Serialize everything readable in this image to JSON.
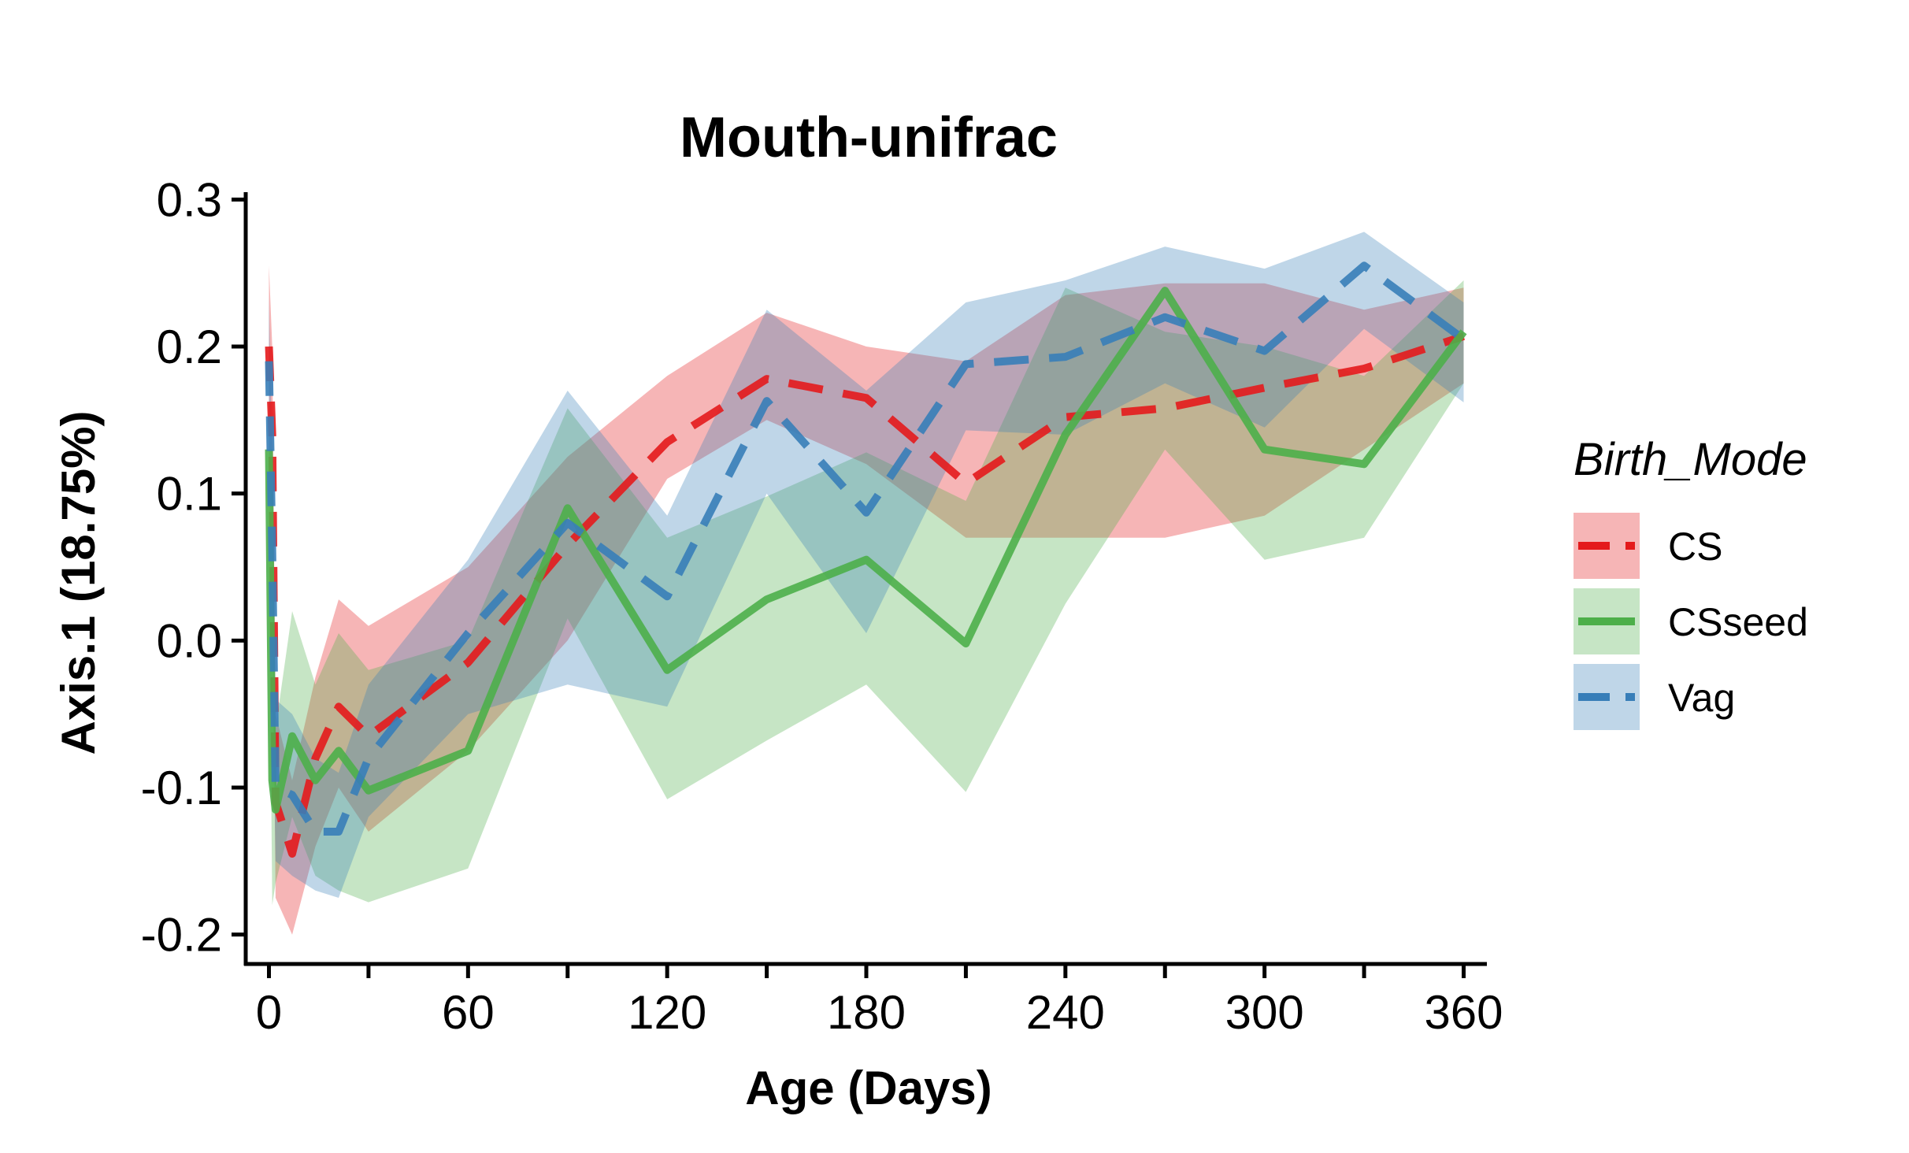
{
  "chart_data": {
    "type": "line",
    "title": "Mouth-unifrac",
    "xlabel": "Age (Days)",
    "ylabel": "Axis.1 (18.75%)",
    "xlim": [
      -7,
      367
    ],
    "ylim": [
      -0.22,
      0.305
    ],
    "x_ticks": [
      0,
      60,
      120,
      180,
      240,
      300,
      360
    ],
    "x_tick_labels": [
      "0",
      "60",
      "120",
      "180",
      "240",
      "300",
      "360"
    ],
    "x_minor_ticks": [
      30,
      90,
      150,
      210,
      270,
      330
    ],
    "y_ticks": [
      -0.2,
      -0.1,
      0.0,
      0.1,
      0.2,
      0.3
    ],
    "y_tick_labels": [
      "-0.2",
      "-0.1",
      "0.0",
      "0.1",
      "0.2",
      "0.3"
    ],
    "grid": false,
    "legend": {
      "title": "Birth_Mode",
      "position": "right",
      "entries": [
        "CS",
        "CSseed",
        "Vag"
      ]
    },
    "series": [
      {
        "name": "CS",
        "color": "#e41a1c",
        "dash": "dashed",
        "x": [
          0,
          1,
          2,
          7,
          14,
          21,
          30,
          60,
          90,
          120,
          150,
          180,
          210,
          240,
          270,
          300,
          330,
          360
        ],
        "y": [
          0.2,
          0.14,
          -0.11,
          -0.145,
          -0.08,
          -0.045,
          -0.065,
          -0.015,
          0.065,
          0.135,
          0.178,
          0.165,
          0.107,
          0.152,
          0.158,
          0.172,
          0.185,
          0.207
        ],
        "lower": [
          0.14,
          0.07,
          -0.175,
          -0.2,
          -0.14,
          -0.1,
          -0.13,
          -0.075,
          0.0,
          0.11,
          0.15,
          0.12,
          0.07,
          0.07,
          0.07,
          0.085,
          0.13,
          0.175
        ],
        "upper": [
          0.255,
          0.2,
          -0.05,
          -0.095,
          -0.025,
          0.028,
          0.01,
          0.05,
          0.125,
          0.18,
          0.223,
          0.2,
          0.19,
          0.235,
          0.243,
          0.243,
          0.225,
          0.24
        ]
      },
      {
        "name": "CSseed",
        "color": "#4daf4a",
        "dash": "solid",
        "x": [
          0,
          1,
          2,
          7,
          14,
          21,
          30,
          60,
          90,
          120,
          150,
          180,
          210,
          240,
          270,
          300,
          330,
          360
        ],
        "y": [
          0.13,
          -0.095,
          -0.115,
          -0.065,
          -0.095,
          -0.075,
          -0.102,
          -0.075,
          0.09,
          -0.02,
          0.028,
          0.055,
          -0.002,
          0.14,
          0.238,
          0.13,
          0.12,
          0.21
        ],
        "lower": [
          0.06,
          -0.18,
          -0.165,
          -0.12,
          -0.16,
          -0.17,
          -0.178,
          -0.155,
          0.015,
          -0.108,
          -0.068,
          -0.03,
          -0.103,
          0.025,
          0.13,
          0.055,
          0.07,
          0.175
        ],
        "upper": [
          0.165,
          -0.03,
          -0.06,
          0.02,
          -0.03,
          0.005,
          -0.02,
          0.0,
          0.158,
          0.07,
          0.098,
          0.128,
          0.095,
          0.24,
          0.21,
          0.2,
          0.18,
          0.245
        ]
      },
      {
        "name": "Vag",
        "color": "#377eb8",
        "dash": "dashed",
        "x": [
          0,
          1,
          2,
          7,
          14,
          21,
          30,
          60,
          90,
          120,
          150,
          180,
          210,
          240,
          270,
          300,
          330,
          360
        ],
        "y": [
          0.19,
          0.06,
          -0.1,
          -0.105,
          -0.13,
          -0.13,
          -0.08,
          0.005,
          0.08,
          0.03,
          0.163,
          0.087,
          0.188,
          0.193,
          0.22,
          0.197,
          0.255,
          0.205
        ],
        "lower": [
          0.13,
          -0.01,
          -0.15,
          -0.16,
          -0.17,
          -0.175,
          -0.12,
          -0.05,
          -0.03,
          -0.045,
          0.1,
          0.005,
          0.143,
          0.14,
          0.175,
          0.145,
          0.212,
          0.162
        ],
        "upper": [
          0.235,
          0.12,
          -0.04,
          -0.05,
          -0.08,
          -0.09,
          -0.03,
          0.055,
          0.17,
          0.085,
          0.225,
          0.17,
          0.23,
          0.245,
          0.268,
          0.253,
          0.278,
          0.23
        ]
      }
    ]
  }
}
